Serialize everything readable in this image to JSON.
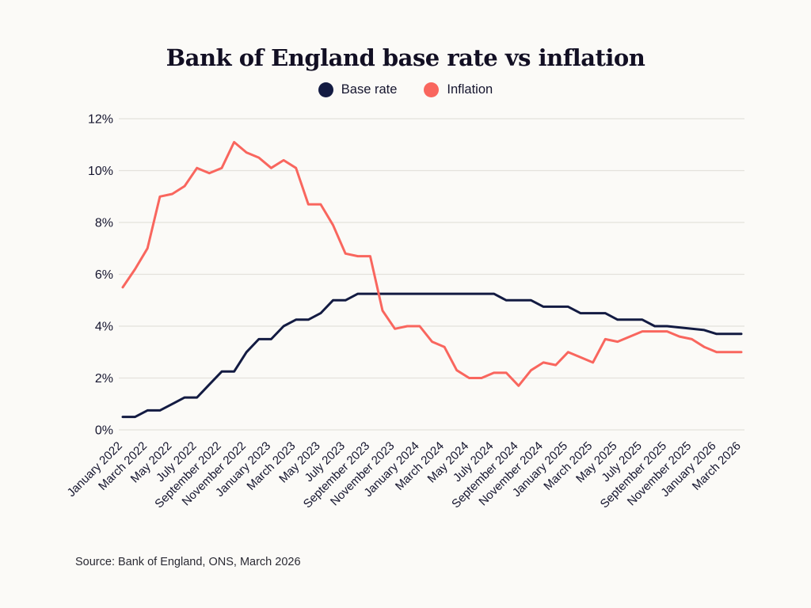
{
  "title": "Bank of England base rate vs inflation",
  "legend": [
    {
      "label": "Base rate",
      "color": "#131b42"
    },
    {
      "label": "Inflation",
      "color": "#f9665e"
    }
  ],
  "source": "Source: Bank of England, ONS, March 2026",
  "chart_data": {
    "type": "line",
    "title": "Bank of England base rate vs inflation",
    "xlabel": "",
    "ylabel": "",
    "ylim": [
      0,
      12
    ],
    "yticks": [
      "0%",
      "2%",
      "4%",
      "6%",
      "8%",
      "10%",
      "12%"
    ],
    "grid": true,
    "legend_position": "top",
    "x_start": "January 2022",
    "x_end": "March 2026",
    "x_tick_labels": [
      "January 2022",
      "March 2022",
      "May 2022",
      "July 2022",
      "September 2022",
      "November 2022",
      "January 2023",
      "March 2023",
      "May 2023",
      "July 2023",
      "September 2023",
      "November 2023",
      "January 2024",
      "March 2024",
      "May 2024",
      "July 2024",
      "September 2024",
      "November 2024",
      "January 2025",
      "March 2025",
      "May 2025",
      "July 2025",
      "September 2025",
      "November 2025",
      "January 2026",
      "March 2026"
    ],
    "series": [
      {
        "name": "Base rate",
        "color": "#131b42",
        "values": [
          0.5,
          0.5,
          0.75,
          0.75,
          1.0,
          1.25,
          1.25,
          1.75,
          2.25,
          2.25,
          3.0,
          3.5,
          3.5,
          4.0,
          4.25,
          4.25,
          4.5,
          5.0,
          5.0,
          5.25,
          5.25,
          5.25,
          5.25,
          5.25,
          5.25,
          5.25,
          5.25,
          5.25,
          5.25,
          5.25,
          5.25,
          5.0,
          5.0,
          5.0,
          4.75,
          4.75,
          4.75,
          4.5,
          4.5,
          4.5,
          4.25,
          4.25,
          4.25,
          4.0,
          4.0,
          3.95,
          3.9,
          3.85,
          3.7,
          3.7,
          3.7
        ]
      },
      {
        "name": "Inflation",
        "color": "#f9665e",
        "values": [
          5.5,
          6.2,
          7.0,
          9.0,
          9.1,
          9.4,
          10.1,
          9.9,
          10.1,
          11.1,
          10.7,
          10.5,
          10.1,
          10.4,
          10.1,
          8.7,
          8.7,
          7.9,
          6.8,
          6.7,
          6.7,
          4.6,
          3.9,
          4.0,
          4.0,
          3.4,
          3.2,
          2.3,
          2.0,
          2.0,
          2.2,
          2.2,
          1.7,
          2.3,
          2.6,
          2.5,
          3.0,
          2.8,
          2.6,
          3.5,
          3.4,
          3.6,
          3.8,
          3.8,
          3.8,
          3.6,
          3.5,
          3.2,
          3.0,
          3.0,
          3.0
        ]
      }
    ]
  }
}
